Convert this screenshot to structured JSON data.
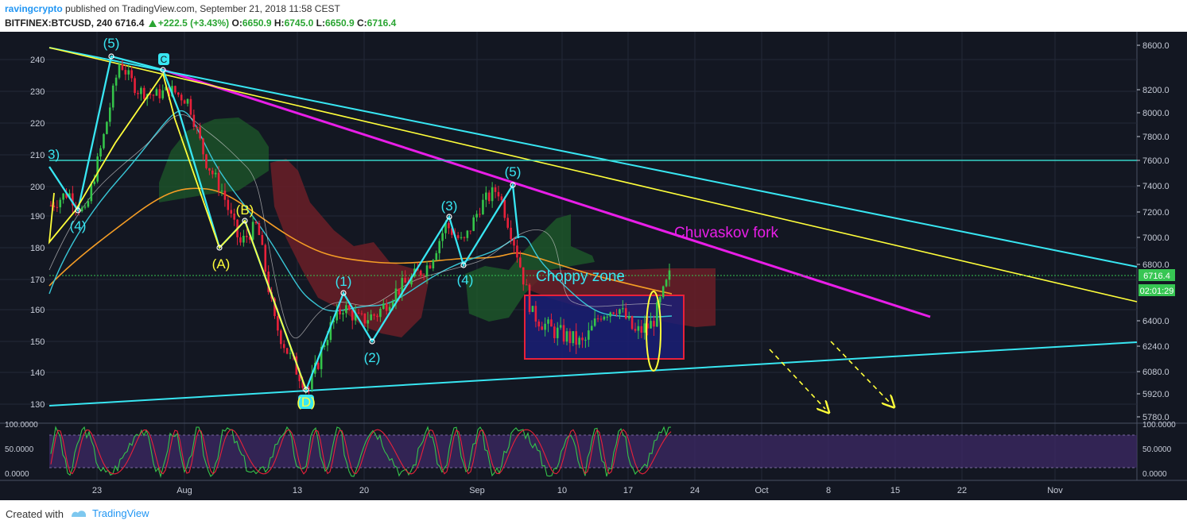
{
  "header": {
    "author": "ravingcrypto",
    "published_text": "published on TradingView.com, September 21, 2018 11:58 CEST",
    "symbol": "BITFINEX:BTCUSD, 240",
    "last": "6716.4",
    "change": "+222.5 (+3.43%)",
    "o_label": "O:",
    "o": "6650.9",
    "h_label": "H:",
    "h": "6745.0",
    "l_label": "L:",
    "l": "6650.9",
    "c_label": "C:",
    "c": "6716.4"
  },
  "footer": {
    "created_with": "Created with",
    "brand": "TradingView"
  },
  "colors": {
    "bg": "#131722",
    "grid": "#262b3e",
    "cyan": "#38e6f2",
    "yellow": "#ffff3a",
    "magenta": "#e91ee8",
    "orange": "#f59d25",
    "red_box": "#e8213a",
    "blue_box": "#1a1f75"
  },
  "chart_data": {
    "type": "line",
    "x_ticks": [
      "23",
      "Aug",
      "13",
      "20",
      "Sep",
      "10",
      "17",
      "24",
      "Oct",
      "8",
      "15",
      "22",
      "Nov"
    ],
    "left_axis_ticks": [
      "240",
      "230",
      "220",
      "210",
      "200",
      "190",
      "180",
      "170",
      "160",
      "150",
      "140",
      "130"
    ],
    "price_axis_ticks": [
      "8600.0",
      "8200.0",
      "8000.0",
      "7800.0",
      "7600.0",
      "7400.0",
      "7200.0",
      "7000.0",
      "6800.0",
      "6400.0",
      "6240.0",
      "6080.0",
      "5920.0",
      "5780.0"
    ],
    "last_price_label": "6716.4",
    "countdown_label": "02:01:29",
    "oscillator_ticks": [
      "100.0000",
      "50.0000",
      "0.0000"
    ],
    "annotations": {
      "chuvaskov": "Chuvaskov fork",
      "choppy": "Choppy zone"
    },
    "wave_labels": [
      "(5)",
      "C",
      "(4)",
      "(B)",
      "(A)",
      "(D)",
      "(1)",
      "(2)",
      "(3)",
      "(4)",
      "(5)",
      "3)"
    ],
    "price_series": [
      {
        "day": "Jul 18",
        "price": 7250
      },
      {
        "day": "Jul 20",
        "price": 7350
      },
      {
        "day": "Jul 21",
        "price": 7180
      },
      {
        "day": "Jul 23",
        "price": 7750
      },
      {
        "day": "Jul 24",
        "price": 8450
      },
      {
        "day": "Jul 25",
        "price": 8200
      },
      {
        "day": "Jul 27",
        "price": 8150
      },
      {
        "day": "Jul 29",
        "price": 8200
      },
      {
        "day": "Jul 30",
        "price": 8100
      },
      {
        "day": "Aug 1",
        "price": 7600
      },
      {
        "day": "Aug 3",
        "price": 7350
      },
      {
        "day": "Aug 5",
        "price": 6950
      },
      {
        "day": "Aug 7",
        "price": 7100
      },
      {
        "day": "Aug 9",
        "price": 6400
      },
      {
        "day": "Aug 11",
        "price": 6150
      },
      {
        "day": "Aug 13",
        "price": 5950
      },
      {
        "day": "Aug 15",
        "price": 6300
      },
      {
        "day": "Aug 17",
        "price": 6500
      },
      {
        "day": "Aug 19",
        "price": 6400
      },
      {
        "day": "Aug 21",
        "price": 6450
      },
      {
        "day": "Aug 23",
        "price": 6600
      },
      {
        "day": "Aug 25",
        "price": 6700
      },
      {
        "day": "Aug 27",
        "price": 6800
      },
      {
        "day": "Aug 29",
        "price": 7100
      },
      {
        "day": "Aug 31",
        "price": 6950
      },
      {
        "day": "Sep 2",
        "price": 7250
      },
      {
        "day": "Sep 4",
        "price": 7380
      },
      {
        "day": "Sep 5",
        "price": 6950
      },
      {
        "day": "Sep 6",
        "price": 6450
      },
      {
        "day": "Sep 8",
        "price": 6350
      },
      {
        "day": "Sep 10",
        "price": 6300
      },
      {
        "day": "Sep 12",
        "price": 6250
      },
      {
        "day": "Sep 14",
        "price": 6450
      },
      {
        "day": "Sep 16",
        "price": 6500
      },
      {
        "day": "Sep 17",
        "price": 6320
      },
      {
        "day": "Sep 19",
        "price": 6380
      },
      {
        "day": "Sep 21",
        "price": 6716
      }
    ]
  }
}
